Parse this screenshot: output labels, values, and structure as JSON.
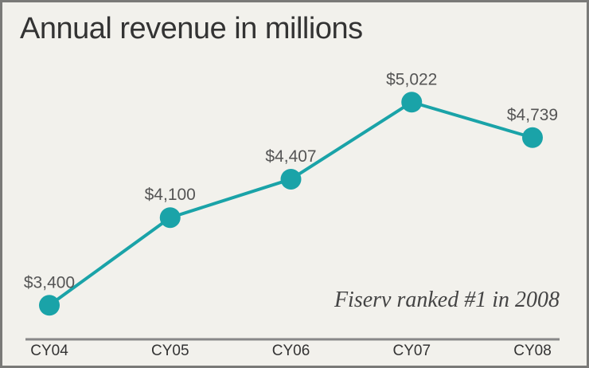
{
  "chart_data": {
    "type": "line",
    "title": "Annual revenue in millions",
    "categories": [
      "CY04",
      "CY05",
      "CY06",
      "CY07",
      "CY08"
    ],
    "values": [
      3400,
      4100,
      4407,
      5022,
      4739
    ],
    "data_labels": [
      "$3,400",
      "$4,100",
      "$4,407",
      "$5,022",
      "$4,739"
    ],
    "annotation": "Fiserv ranked #1 in 2008",
    "xlabel": "",
    "ylabel": "",
    "ylim": null,
    "grid": false,
    "line_color": "#1aa3a8",
    "background_color": "#f2f1ec"
  }
}
